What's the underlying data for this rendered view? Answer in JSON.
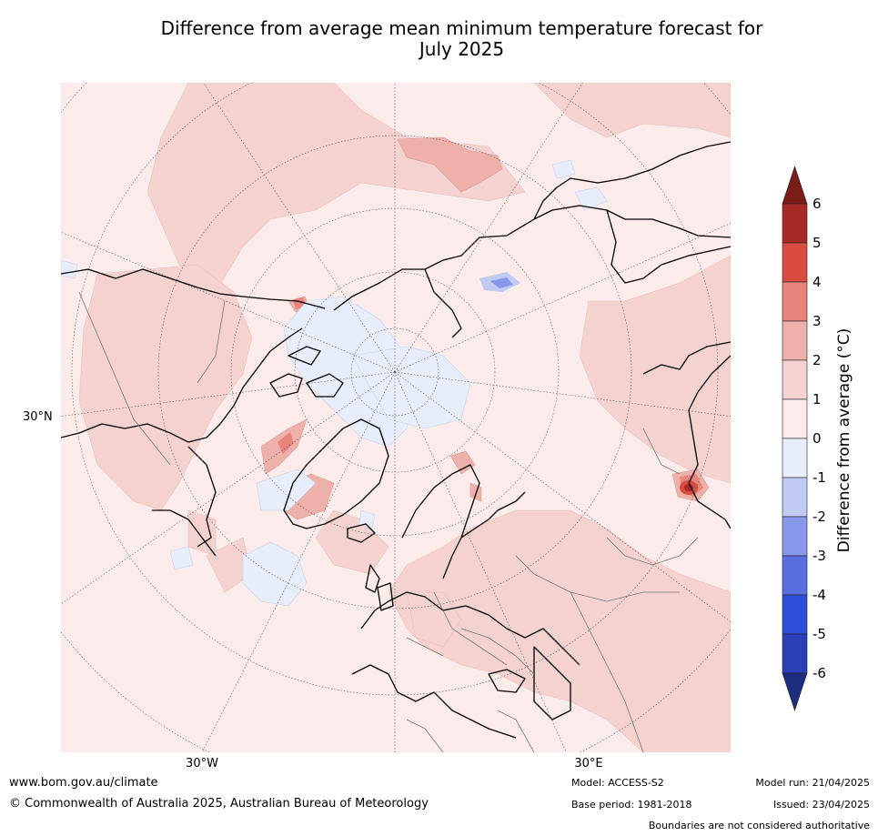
{
  "title": {
    "line1": "Difference from average mean minimum temperature forecast for",
    "line2": "July 2025"
  },
  "map": {
    "projection": "north polar stereographic",
    "lon_labels": [
      "30°W",
      "30°E"
    ],
    "lat_labels": [
      "30°N"
    ]
  },
  "colorbar": {
    "label": "Difference from average (°C)",
    "ticks": [
      "6",
      "5",
      "4",
      "3",
      "2",
      "1",
      "0",
      "-1",
      "-2",
      "-3",
      "-4",
      "-5",
      "-6"
    ],
    "colors": {
      "above_6": "#7a1c18",
      "5_to_6": "#a82a25",
      "4_to_5": "#d94c42",
      "3_to_4": "#e8847c",
      "2_to_3": "#eeb0aa",
      "1_to_2": "#f4d2cf",
      "0_to_1": "#fbeceb",
      "m1_to_0": "#e8edfa",
      "m2_to_m1": "#c0caf2",
      "m3_to_m2": "#8797ea",
      "m4_to_m3": "#5a6ee0",
      "m5_to_m4": "#2f4fdb",
      "m6_to_m5": "#2a3fb5",
      "below_m6": "#1e2c80"
    }
  },
  "footer": {
    "website": "www.bom.gov.au/climate",
    "copyright": "© Commonwealth of Australia 2025, Australian Bureau of Meteorology",
    "model": "Model: ACCESS-S2",
    "base_period": "Base period: 1981-2018",
    "model_run": "Model run: 21/04/2025",
    "issued": "Issued: 23/04/2025",
    "disclaimer": "Boundaries are not considered authoritative"
  }
}
